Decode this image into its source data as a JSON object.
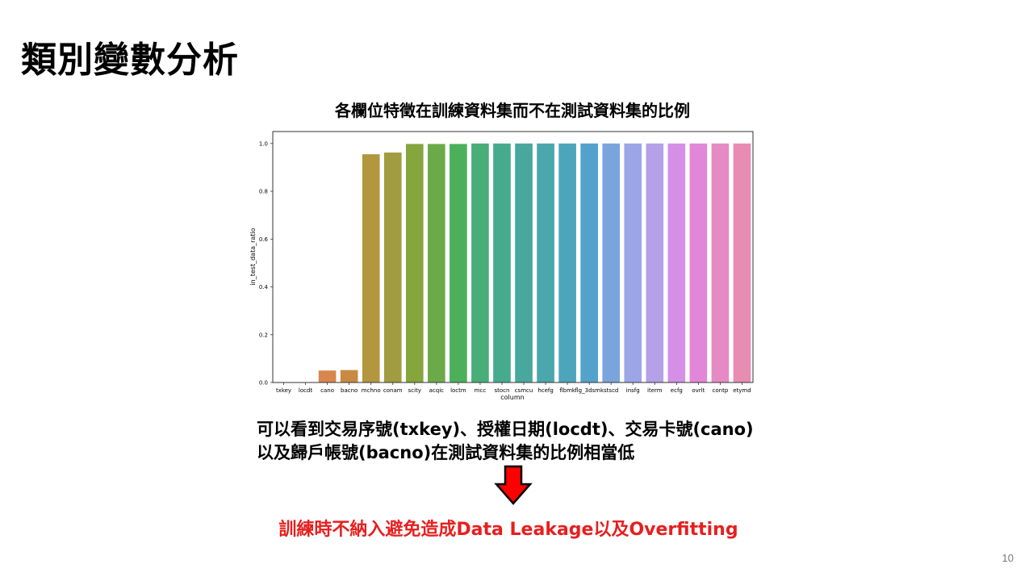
{
  "slide": {
    "title": "類別變數分析",
    "description_line1": "可以看到交易序號(txkey)、授權日期(locdt)、交易卡號(cano)",
    "description_line2": "以及歸戶帳號(bacno)在測試資料集的比例相當低",
    "conclusion": "訓練時不納入避免造成Data Leakage以及Overfitting",
    "page_number": "10",
    "arrow_icon": "down-arrow-icon",
    "arrow_color": "#ff0000",
    "conclusion_color": "#e81e1e"
  },
  "chart_data": {
    "type": "bar",
    "title": "各欄位特徵在訓練資料集而不在測試資料集的比例",
    "xlabel": "column",
    "ylabel": "in_test_data_ratio",
    "ylim": [
      0,
      1.05
    ],
    "yticks": [
      "0.0",
      "0.2",
      "0.4",
      "0.6",
      "0.8",
      "1.0"
    ],
    "grid": false,
    "legend": false,
    "categories": [
      "txkey",
      "locdt",
      "cano",
      "bacno",
      "mchno",
      "conam",
      "scity",
      "acqic",
      "loctm",
      "mcc",
      "stocn",
      "csmcu",
      "hcefg",
      "flbmk",
      "flg_3dsmk",
      "stscd",
      "insfg",
      "iterm",
      "ecfg",
      "ovrlt",
      "contp",
      "etymd"
    ],
    "values": [
      0.0,
      0.0,
      0.05,
      0.052,
      0.955,
      0.962,
      0.998,
      0.998,
      0.998,
      1.0,
      1.0,
      1.0,
      1.0,
      1.0,
      1.0,
      1.0,
      1.0,
      1.0,
      1.0,
      1.0,
      1.0,
      1.0
    ],
    "colors": [
      "#f0705b",
      "#dc7c43",
      "#d8854e",
      "#c88a41",
      "#b3973f",
      "#a29c40",
      "#85a53d",
      "#6caa49",
      "#4caf5a",
      "#48ad78",
      "#46ab8d",
      "#48a89d",
      "#4aa7ab",
      "#4ca5bb",
      "#52a2cc",
      "#7aa5dc",
      "#9ba6e6",
      "#b6a0e8",
      "#d58fe6",
      "#e286d8",
      "#e68ac5",
      "#e88cb2"
    ]
  }
}
